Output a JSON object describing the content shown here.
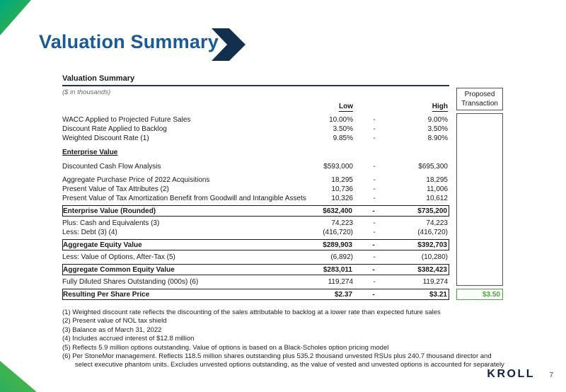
{
  "colors": {
    "blue": "#1a5a96",
    "navy": "#122f4e",
    "green": "#3dae2c",
    "ink": "#1a1a1a"
  },
  "slide": {
    "title": "Valuation Summary",
    "logo": "KROLL",
    "page_number": "7"
  },
  "table": {
    "title": "Valuation Summary",
    "subtitle": "($ in thousands)",
    "columns": {
      "low": "Low",
      "high": "High"
    },
    "proposed": {
      "header_line1": "Proposed",
      "header_line2": "Transaction",
      "value": "$3.50"
    },
    "rows": [
      {
        "label": "WACC Applied to Projected Future Sales",
        "low": "10.00%",
        "dash": "-",
        "high": "9.00%"
      },
      {
        "label": "Discount Rate Applied to Backlog",
        "low": "3.50%",
        "dash": "-",
        "high": "3.50%"
      },
      {
        "label": "Weighted Discount Rate (1)",
        "low": "9.85%",
        "dash": "-",
        "high": "8.90%"
      },
      {
        "label": "Enterprise Value"
      },
      {
        "label": "Discounted Cash Flow Analysis",
        "low": "$593,000",
        "dash": "-",
        "high": "$695,300"
      },
      {
        "label": "Aggregate Purchase Price of 2022 Acquisitions",
        "low": "18,295",
        "dash": "-",
        "high": "18,295"
      },
      {
        "label": "Present Value of Tax Attributes (2)",
        "low": "10,736",
        "dash": "-",
        "high": "11,006"
      },
      {
        "label": "Present Value of Tax Amortization Benefit from Goodwill and Intangible Assets",
        "low": "10,326",
        "dash": "-",
        "high": "10,612"
      },
      {
        "label": "Enterprise Value (Rounded)",
        "low": "$632,400",
        "dash": "-",
        "high": "$735,200"
      },
      {
        "label": "Plus: Cash and Equivalents (3)",
        "low": "74,223",
        "dash": "-",
        "high": "74,223"
      },
      {
        "label": "Less: Debt (3) (4)",
        "low": "(416,720)",
        "dash": "-",
        "high": "(416,720)"
      },
      {
        "label": "Aggregate Equity Value",
        "low": "$289,903",
        "dash": "-",
        "high": "$392,703"
      },
      {
        "label": "Less: Value of Options, After-Tax (5)",
        "low": "(6,892)",
        "dash": "-",
        "high": "(10,280)"
      },
      {
        "label": "Aggregate Common Equity Value",
        "low": "$283,011",
        "dash": "-",
        "high": "$382,423"
      },
      {
        "label": "Fully Diluted Shares Outstanding (000s) (6)",
        "low": "119,274",
        "dash": "-",
        "high": "119,274"
      },
      {
        "label": "Resulting Per Share Price",
        "low": "$2.37",
        "dash": "-",
        "high": "$3.21"
      }
    ]
  },
  "footnotes": [
    "(1) Weighted discount rate reflects the discounting of the sales attributable to backlog at a lower rate than expected future sales",
    "(2) Present value of NOL tax shield",
    "(3) Balance as of March 31, 2022",
    "(4) Includes accrued interest of $12.8 million",
    "(5) Reflects 5.9 million options outstanding. Value of options is based on a Black-Scholes option pricing model",
    "(6) Per StoneMor management. Reflects 118.5 million shares outstanding plus 535.2 thousand unvested RSUs plus 240.7 thousand director and select executive phantom units. Excludes unvested options outstanding, as the value of vested and unvested options is accounted for separately"
  ]
}
